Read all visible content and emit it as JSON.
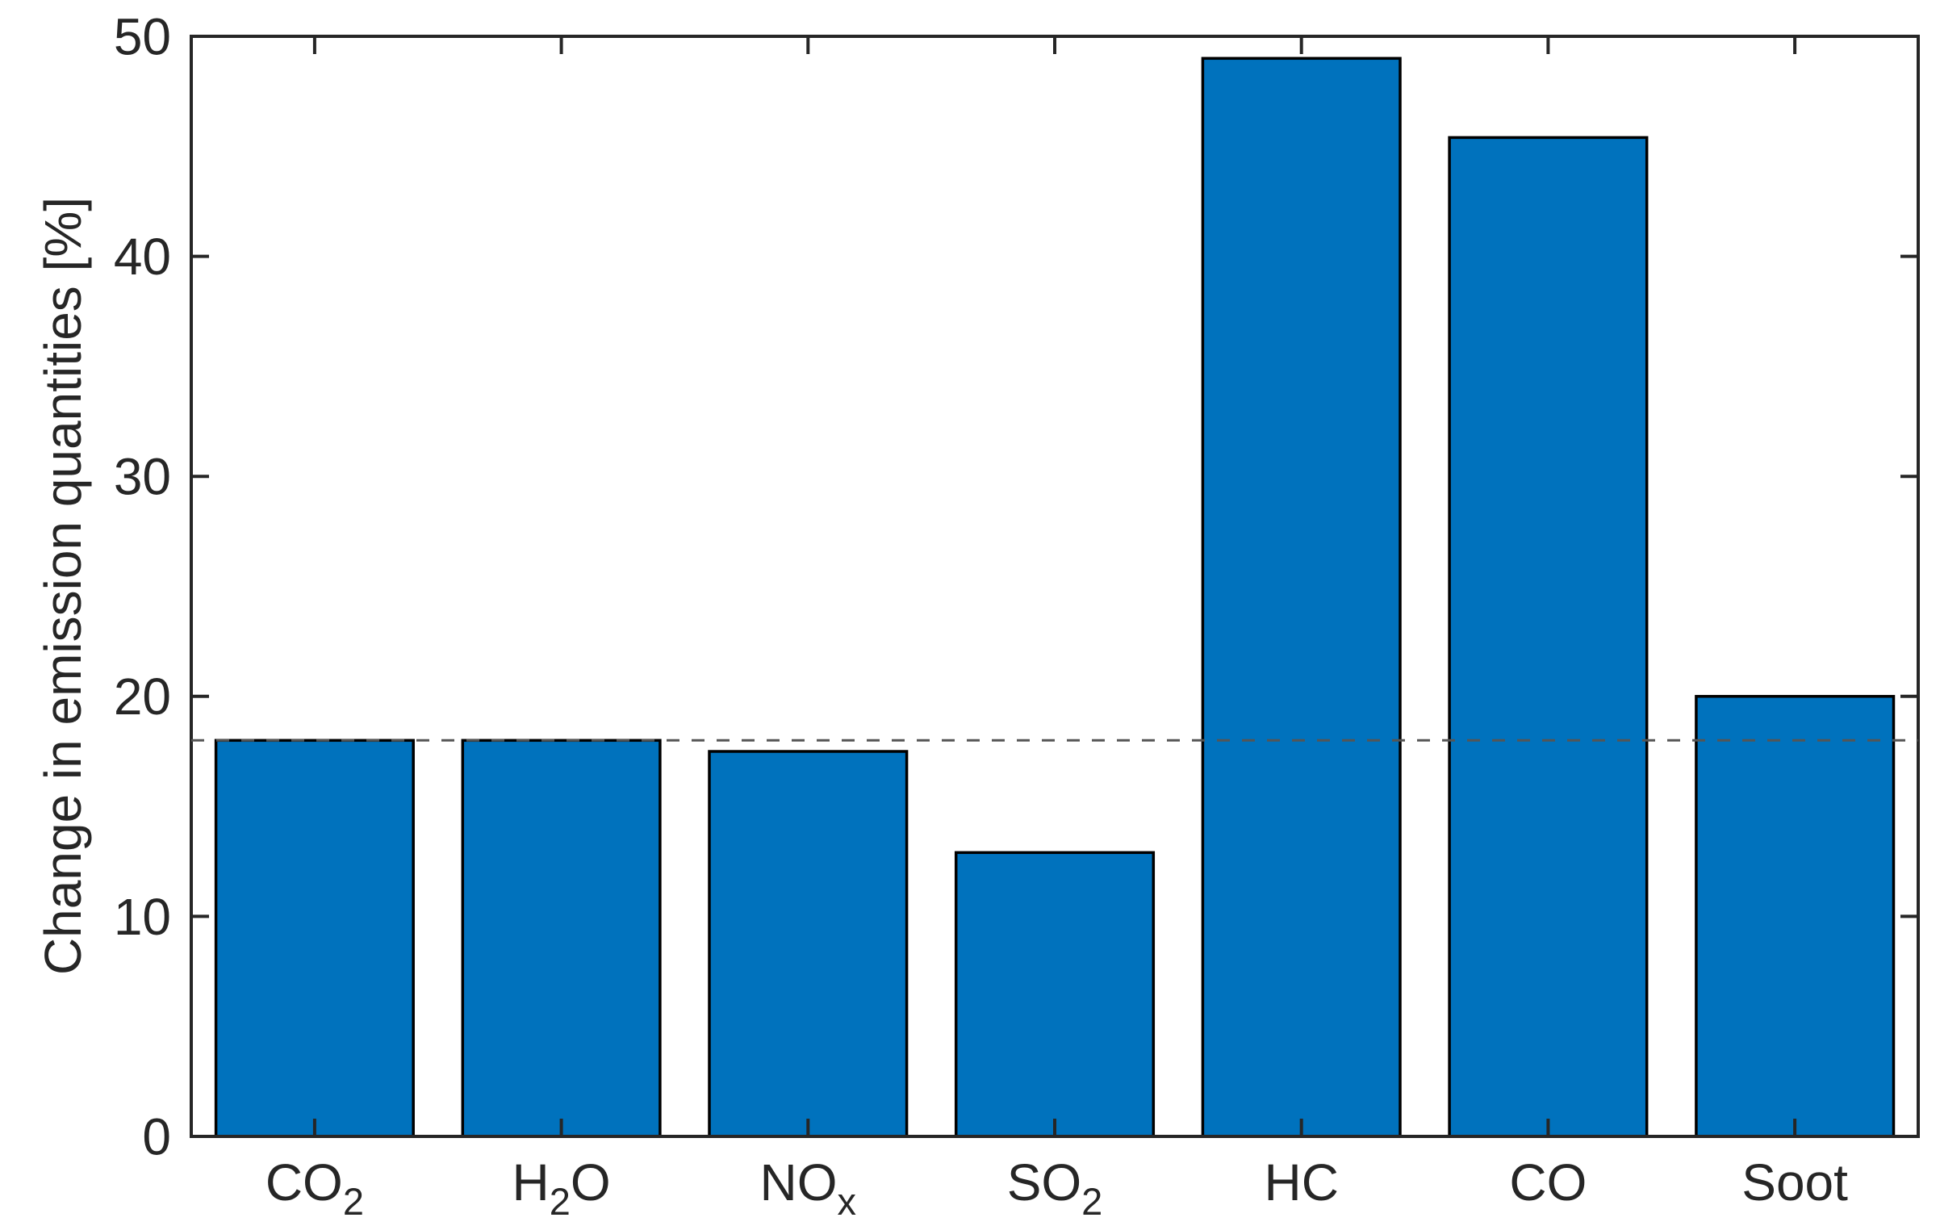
{
  "figure": {
    "background_color": "#ffffff"
  },
  "chart_data": {
    "type": "bar",
    "title": "",
    "xlabel": "",
    "ylabel": "Change in emission quantities [%]",
    "ylim": [
      0,
      50
    ],
    "yticks": [
      0,
      10,
      20,
      30,
      40,
      50
    ],
    "grid": false,
    "legend_position": "none",
    "bar_color": "#0072BD",
    "bar_edge_color": "#000000",
    "axis_color": "#262626",
    "tick_direction": "in",
    "reference_line": {
      "value": 18,
      "style": "dashed",
      "color": "#555555"
    },
    "categories": [
      "CO2",
      "H2O",
      "NOx",
      "SO2",
      "HC",
      "CO",
      "Soot"
    ],
    "category_parts": [
      [
        [
          "CO",
          false
        ],
        [
          "2",
          true
        ]
      ],
      [
        [
          "H",
          false
        ],
        [
          "2",
          true
        ],
        [
          "O",
          false
        ]
      ],
      [
        [
          "NO",
          false
        ],
        [
          "x",
          true
        ]
      ],
      [
        [
          "SO",
          false
        ],
        [
          "2",
          true
        ]
      ],
      [
        [
          "HC",
          false
        ]
      ],
      [
        [
          "CO",
          false
        ]
      ],
      [
        [
          "Soot",
          false
        ]
      ]
    ],
    "values": [
      18,
      18,
      17.5,
      12.9,
      49,
      45.4,
      20
    ]
  }
}
